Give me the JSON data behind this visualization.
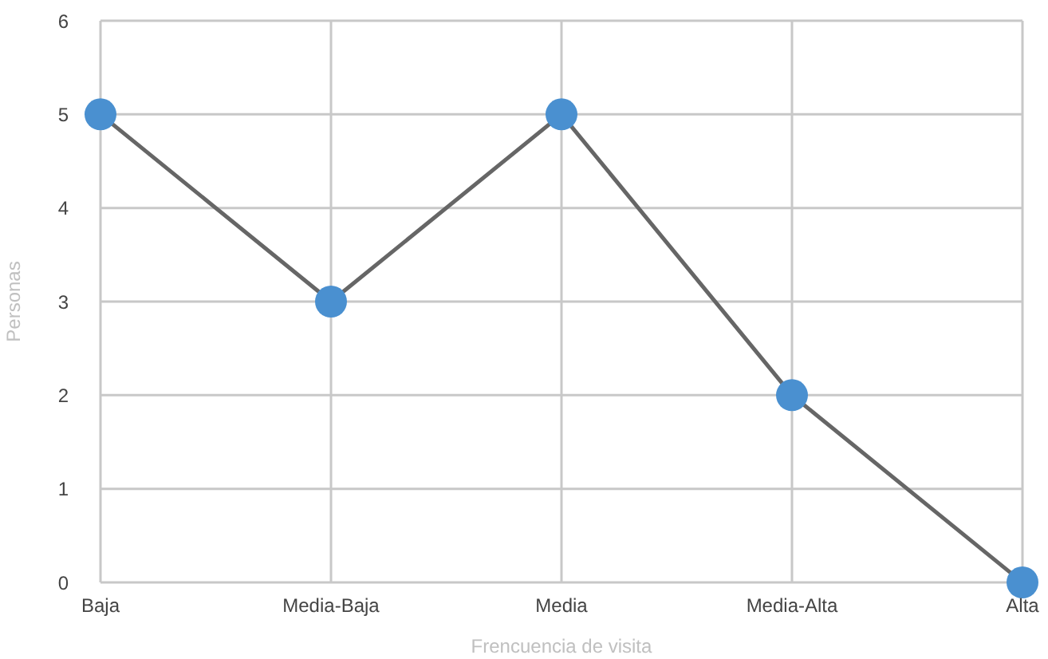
{
  "chart_data": {
    "type": "line",
    "xlabel": "Frencuencia de visita",
    "ylabel": "Personas",
    "categories": [
      "Baja",
      "Media-Baja",
      "Media",
      "Media-Alta",
      "Alta"
    ],
    "series": [
      {
        "color": "#666666",
        "colors": [
          "#4a90d0",
          "#4a90d0",
          "#4a90d0",
          "#4a90d0",
          "#4a90d0"
        ],
        "values": [
          5,
          3,
          5,
          2,
          0
        ]
      }
    ],
    "ylim": [
      0,
      6
    ],
    "yticks": [
      0,
      1,
      2,
      3,
      4,
      5,
      6
    ],
    "grid": true,
    "marker": "circle",
    "line_style": "solid"
  }
}
